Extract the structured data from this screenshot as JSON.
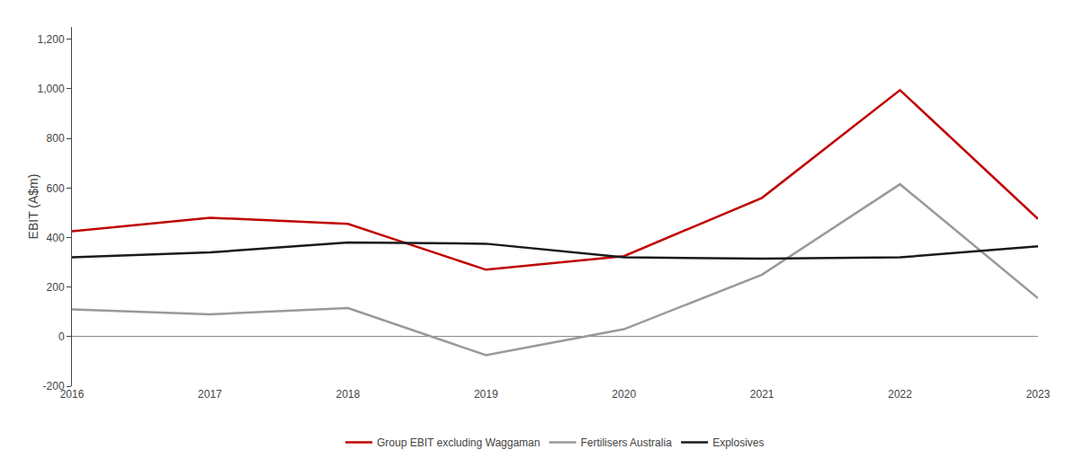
{
  "chart_data": {
    "type": "line",
    "categories": [
      "2016",
      "2017",
      "2018",
      "2019",
      "2020",
      "2021",
      "2022",
      "2023"
    ],
    "series": [
      {
        "name": "Group EBIT excluding Waggaman",
        "color": "#c00000",
        "values": [
          425,
          480,
          455,
          270,
          325,
          560,
          995,
          475
        ]
      },
      {
        "name": "Fertilisers Australia",
        "color": "#999999",
        "values": [
          110,
          90,
          115,
          -75,
          30,
          250,
          615,
          155
        ]
      },
      {
        "name": "Explosives",
        "color": "#1a1a1a",
        "values": [
          320,
          340,
          380,
          375,
          320,
          315,
          320,
          365
        ]
      }
    ],
    "y_label": "EBIT (A$m)",
    "ylim": [
      -200,
      1250
    ],
    "yticks": [
      -200,
      0,
      200,
      400,
      600,
      {
        "value": 800,
        "label": "800"
      },
      {
        "value": 1000,
        "label": "1,000"
      },
      {
        "value": 1200,
        "label": "1,200"
      }
    ],
    "grid": false,
    "legend": "bottom"
  }
}
